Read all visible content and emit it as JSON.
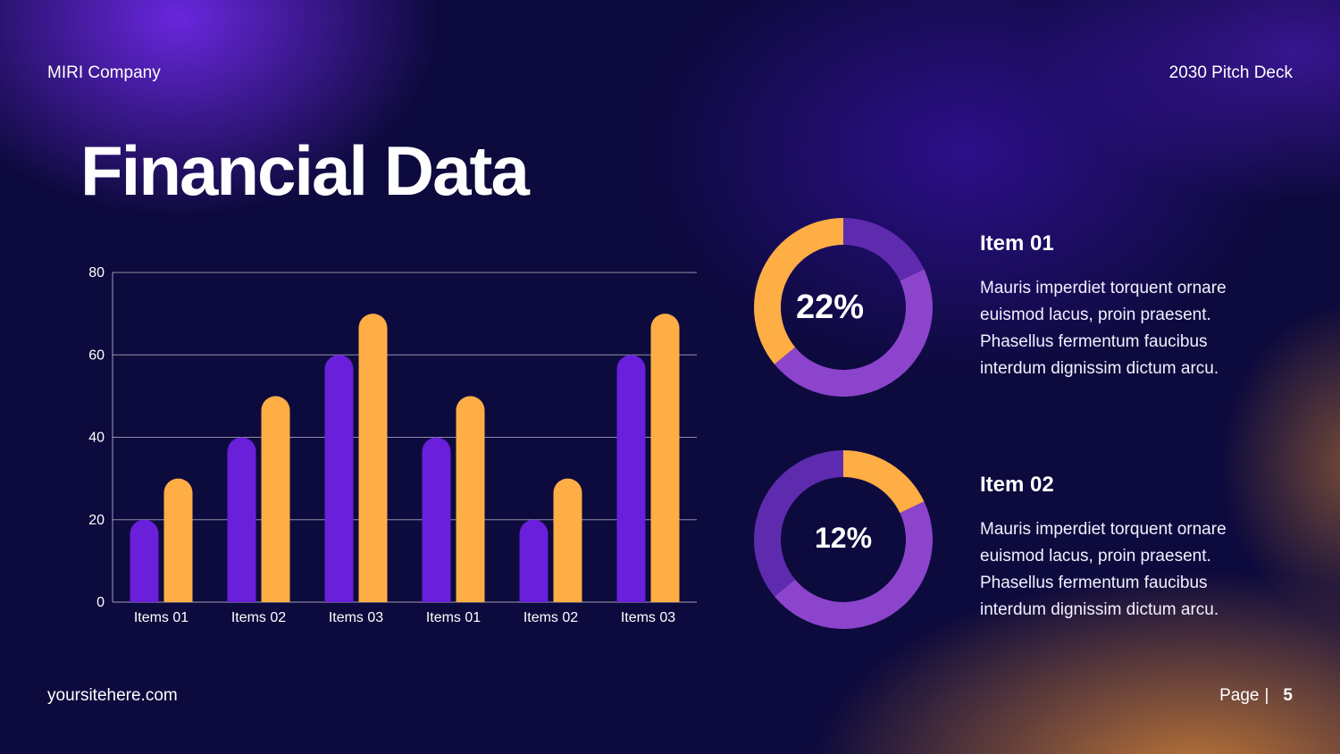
{
  "header": {
    "company": "MIRI Company",
    "deck": "2030 Pitch Deck"
  },
  "title": "Financial Data",
  "footer": {
    "site": "yoursitehere.com",
    "page_label": "Page",
    "separator": "|",
    "page_number": "5"
  },
  "colors": {
    "purple": "#6a1fdb",
    "orange": "#ffad45",
    "donut_dark": "#5e2bae",
    "donut_light": "#8c44cc",
    "background": "#0d0a3d"
  },
  "chart_data": [
    {
      "type": "bar",
      "categories": [
        "Items 01",
        "Items 02",
        "Items 03",
        "Items 01",
        "Items 02",
        "Items 03"
      ],
      "series": [
        {
          "values": [
            20,
            40,
            60,
            40,
            20,
            60
          ],
          "color": "#6a1fdb"
        },
        {
          "values": [
            30,
            50,
            70,
            50,
            30,
            70
          ],
          "color": "#ffad45"
        }
      ],
      "yticks": [
        0,
        20,
        40,
        60,
        80
      ],
      "ylim": [
        0,
        80
      ],
      "grid": true
    },
    {
      "type": "pie",
      "label": "22%",
      "slices": [
        {
          "value": 18,
          "color": "#5e2bae"
        },
        {
          "value": 46,
          "color": "#8c44cc"
        },
        {
          "value": 36,
          "color": "#ffad45"
        }
      ]
    },
    {
      "type": "pie",
      "label": "12%",
      "slices": [
        {
          "value": 18,
          "color": "#ffad45"
        },
        {
          "value": 46,
          "color": "#8c44cc"
        },
        {
          "value": 36,
          "color": "#5e2bae"
        }
      ]
    }
  ],
  "items": [
    {
      "title": "Item 01",
      "text": "Mauris imperdiet torquent ornare euismod lacus, proin praesent. Phasellus fermentum faucibus interdum dignissim dictum arcu."
    },
    {
      "title": "Item 02",
      "text": "Mauris imperdiet torquent ornare euismod lacus, proin praesent. Phasellus fermentum faucibus interdum dignissim dictum arcu."
    }
  ]
}
